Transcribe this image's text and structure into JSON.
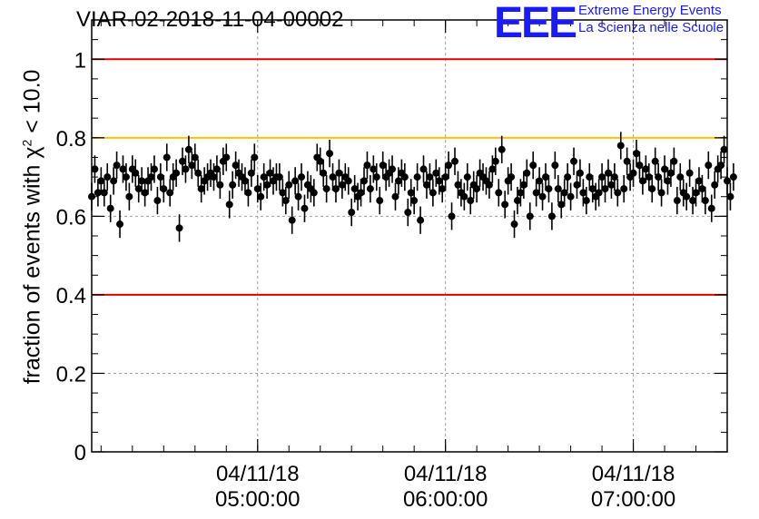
{
  "header": {
    "title": "VIAR-02-2018-11-04-00002",
    "logo_letters": "EEE",
    "logo_line1": "Extreme Energy Events",
    "logo_line2": "La Scienza nelle Scuole"
  },
  "colors": {
    "red_line": "#e00000",
    "yellow_line": "#ffc000",
    "points": "#000000",
    "logo": "#1a1aff",
    "grid": "#a0a0a0"
  },
  "chart_data": {
    "type": "scatter",
    "title": "VIAR-02-2018-11-04-00002",
    "ylabel_prefix": "fraction of events with",
    "ylabel_symbol": "χ",
    "ylabel_exp": "2",
    "ylabel_suffix": "< 10.0",
    "ylim": [
      0,
      1.1
    ],
    "xlim": [
      "04/11/18 04:07:00",
      "04/11/18 07:30:00"
    ],
    "yticks": [
      0,
      0.2,
      0.4,
      0.6,
      0.8,
      1
    ],
    "ytick_labels": [
      "0",
      "0.2",
      "0.4",
      "0.6",
      "0.8",
      "1"
    ],
    "xticks": [
      {
        "time": "04/11/18 05:00:00",
        "date": "04/11/18",
        "clock": "05:00:00"
      },
      {
        "time": "04/11/18 06:00:00",
        "date": "04/11/18",
        "clock": "06:00:00"
      },
      {
        "time": "04/11/18 07:00:00",
        "date": "04/11/18",
        "clock": "07:00:00"
      }
    ],
    "grid": true,
    "reference_lines": [
      {
        "y": 1.0,
        "color": "red"
      },
      {
        "y": 0.8,
        "color": "yellow"
      },
      {
        "y": 0.4,
        "color": "red"
      }
    ],
    "points_start": "04/11/18 04:07:00",
    "points_step_seconds": 60,
    "error_bar": 0.035,
    "y": [
      0.65,
      0.72,
      0.66,
      0.69,
      0.66,
      0.7,
      0.62,
      0.69,
      0.73,
      0.58,
      0.72,
      0.7,
      0.65,
      0.72,
      0.71,
      0.67,
      0.69,
      0.66,
      0.69,
      0.7,
      0.72,
      0.64,
      0.7,
      0.67,
      0.75,
      0.66,
      0.7,
      0.71,
      0.57,
      0.74,
      0.72,
      0.77,
      0.73,
      0.75,
      0.71,
      0.67,
      0.69,
      0.7,
      0.71,
      0.7,
      0.72,
      0.68,
      0.74,
      0.75,
      0.63,
      0.68,
      0.73,
      0.71,
      0.7,
      0.69,
      0.66,
      0.71,
      0.75,
      0.67,
      0.65,
      0.7,
      0.68,
      0.71,
      0.69,
      0.7,
      0.7,
      0.66,
      0.64,
      0.68,
      0.59,
      0.69,
      0.65,
      0.7,
      0.62,
      0.68,
      0.67,
      0.66,
      0.75,
      0.74,
      0.71,
      0.67,
      0.76,
      0.7,
      0.67,
      0.71,
      0.68,
      0.7,
      0.69,
      0.61,
      0.67,
      0.65,
      0.66,
      0.69,
      0.73,
      0.67,
      0.72,
      0.7,
      0.64,
      0.73,
      0.7,
      0.71,
      0.72,
      0.65,
      0.69,
      0.71,
      0.7,
      0.61,
      0.66,
      0.64,
      0.7,
      0.59,
      0.72,
      0.68,
      0.7,
      0.66,
      0.71,
      0.69,
      0.67,
      0.7,
      0.73,
      0.6,
      0.74,
      0.68,
      0.66,
      0.65,
      0.7,
      0.64,
      0.68,
      0.67,
      0.71,
      0.7,
      0.69,
      0.68,
      0.72,
      0.74,
      0.66,
      0.77,
      0.63,
      0.69,
      0.7,
      0.58,
      0.64,
      0.66,
      0.68,
      0.71,
      0.6,
      0.73,
      0.66,
      0.69,
      0.65,
      0.7,
      0.67,
      0.6,
      0.73,
      0.67,
      0.63,
      0.66,
      0.7,
      0.65,
      0.74,
      0.68,
      0.71,
      0.66,
      0.64,
      0.7,
      0.67,
      0.65,
      0.66,
      0.7,
      0.67,
      0.71,
      0.68,
      0.7,
      0.66,
      0.78,
      0.67,
      0.74,
      0.7,
      0.71,
      0.76,
      0.73,
      0.69,
      0.72,
      0.7,
      0.67,
      0.74,
      0.7,
      0.66,
      0.72,
      0.69,
      0.71,
      0.74,
      0.64,
      0.7,
      0.66,
      0.65,
      0.71,
      0.64,
      0.66,
      0.69,
      0.67,
      0.64,
      0.73,
      0.62,
      0.68,
      0.72,
      0.73,
      0.77,
      0.69,
      0.65,
      0.7
    ]
  }
}
